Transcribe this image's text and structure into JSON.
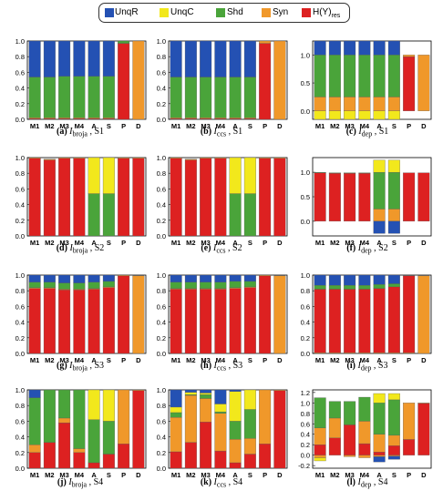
{
  "legend": [
    {
      "key": "UnqR",
      "label": "UnqR",
      "color": "#2451b3"
    },
    {
      "key": "UnqC",
      "label": "UnqC",
      "color": "#f2e81c"
    },
    {
      "key": "Shd",
      "label": "Shd",
      "color": "#4aa43a"
    },
    {
      "key": "Syn",
      "label": "Syn",
      "color": "#f0982a"
    },
    {
      "key": "H",
      "label": "H(Y)",
      "sub": "res",
      "color": "#dd2121"
    }
  ],
  "chart_data": [
    {
      "type": "bar",
      "stacked": true,
      "id": "a",
      "caption": {
        "letter": "(a)",
        "measure": "broja",
        "scenario": "S1"
      },
      "categories": [
        "M1",
        "M2",
        "M3",
        "M4",
        "A",
        "S",
        "P",
        "D"
      ],
      "ylim": [
        0,
        1
      ],
      "yticks": [
        0.0,
        0.2,
        0.4,
        0.6,
        0.8,
        1.0
      ],
      "series": [
        {
          "name": "H(Y)res",
          "values": [
            0.01,
            0.01,
            0.01,
            0.01,
            0.01,
            0.01,
            0.97,
            0
          ]
        },
        {
          "name": "Syn",
          "values": [
            0.01,
            0.01,
            0.01,
            0.01,
            0.01,
            0.01,
            0,
            1.0
          ]
        },
        {
          "name": "Shd",
          "values": [
            0.52,
            0.52,
            0.53,
            0.53,
            0.53,
            0.53,
            0.03,
            0
          ]
        },
        {
          "name": "UnqC",
          "values": [
            0,
            0,
            0,
            0,
            0,
            0,
            0,
            0
          ]
        },
        {
          "name": "UnqR",
          "values": [
            0.46,
            0.46,
            0.45,
            0.45,
            0.45,
            0.45,
            0,
            0
          ]
        }
      ]
    },
    {
      "type": "bar",
      "stacked": true,
      "id": "b",
      "caption": {
        "letter": "(b)",
        "measure": "ccs",
        "scenario": "S1"
      },
      "categories": [
        "M1",
        "M2",
        "M3",
        "M4",
        "A",
        "S",
        "P",
        "D"
      ],
      "ylim": [
        0,
        1
      ],
      "yticks": [
        0.0,
        0.2,
        0.4,
        0.6,
        0.8,
        1.0
      ],
      "series": [
        {
          "name": "H(Y)res",
          "values": [
            0.01,
            0.01,
            0.01,
            0.01,
            0.01,
            0.01,
            0.97,
            0
          ]
        },
        {
          "name": "Syn",
          "values": [
            0.01,
            0.01,
            0.01,
            0.01,
            0.01,
            0.01,
            0.03,
            1.0
          ]
        },
        {
          "name": "Shd",
          "values": [
            0.52,
            0.52,
            0.52,
            0.52,
            0.52,
            0.52,
            0,
            0
          ]
        },
        {
          "name": "UnqC",
          "values": [
            0,
            0,
            0,
            0,
            0,
            0,
            0,
            0
          ]
        },
        {
          "name": "UnqR",
          "values": [
            0.46,
            0.46,
            0.46,
            0.46,
            0.46,
            0.46,
            0,
            0
          ]
        }
      ]
    },
    {
      "type": "bar",
      "stacked": true,
      "id": "c",
      "caption": {
        "letter": "(c)",
        "measure": "dep",
        "scenario": "S1"
      },
      "categories": [
        "M1",
        "M2",
        "M3",
        "M4",
        "A",
        "S",
        "P",
        "D"
      ],
      "ylim": [
        -0.15,
        1.25
      ],
      "yticks": [
        0.0,
        0.5,
        1.0
      ],
      "negative": [
        {
          "name": "UnqC",
          "values": [
            -0.15,
            -0.15,
            -0.15,
            -0.15,
            -0.15,
            -0.15,
            0,
            0
          ]
        }
      ],
      "series": [
        {
          "name": "Syn",
          "values": [
            0.25,
            0.25,
            0.25,
            0.25,
            0.25,
            0.25,
            0,
            1.0
          ]
        },
        {
          "name": "Shd",
          "values": [
            0.75,
            0.75,
            0.75,
            0.75,
            0.75,
            0.75,
            0,
            0
          ]
        },
        {
          "name": "H(Y)res",
          "values": [
            0,
            0,
            0,
            0,
            0,
            0,
            0.97,
            0
          ]
        },
        {
          "name": "Syn",
          "values": [
            0,
            0,
            0,
            0,
            0,
            0,
            0.03,
            0
          ]
        },
        {
          "name": "UnqR",
          "values": [
            0.25,
            0.25,
            0.25,
            0.25,
            0.25,
            0.25,
            0,
            0
          ]
        }
      ]
    },
    {
      "type": "bar",
      "stacked": true,
      "id": "d",
      "caption": {
        "letter": "(d)",
        "measure": "broja",
        "scenario": "S2"
      },
      "categories": [
        "M1",
        "M2",
        "M3",
        "M4",
        "A",
        "S",
        "P",
        "D"
      ],
      "ylim": [
        0,
        1
      ],
      "yticks": [
        0.0,
        0.2,
        0.4,
        0.6,
        0.8,
        1.0
      ],
      "series": [
        {
          "name": "H(Y)res",
          "values": [
            0.99,
            0.97,
            0.99,
            0.99,
            0,
            0,
            0.99,
            0.99
          ]
        },
        {
          "name": "Shd",
          "values": [
            0,
            0,
            0,
            0,
            0.54,
            0.54,
            0,
            0
          ]
        },
        {
          "name": "UnqC",
          "values": [
            0,
            0,
            0,
            0,
            0.46,
            0.46,
            0,
            0
          ]
        },
        {
          "name": "Syn",
          "values": [
            0.01,
            0.01,
            0.01,
            0.01,
            0,
            0,
            0.01,
            0.01
          ]
        }
      ]
    },
    {
      "type": "bar",
      "stacked": true,
      "id": "e",
      "caption": {
        "letter": "(e)",
        "measure": "ccs",
        "scenario": "S2"
      },
      "categories": [
        "M1",
        "M2",
        "M3",
        "M4",
        "A",
        "S",
        "P",
        "D"
      ],
      "ylim": [
        0,
        1
      ],
      "yticks": [
        0.0,
        0.2,
        0.4,
        0.6,
        0.8,
        1.0
      ],
      "series": [
        {
          "name": "H(Y)res",
          "values": [
            0.99,
            0.97,
            0.99,
            0.99,
            0,
            0,
            0.99,
            0.99
          ]
        },
        {
          "name": "Shd",
          "values": [
            0,
            0,
            0,
            0,
            0.54,
            0.54,
            0,
            0
          ]
        },
        {
          "name": "UnqC",
          "values": [
            0,
            0,
            0,
            0,
            0.46,
            0.46,
            0,
            0
          ]
        },
        {
          "name": "Syn",
          "values": [
            0.01,
            0.01,
            0.01,
            0.01,
            0,
            0,
            0.01,
            0.01
          ]
        }
      ]
    },
    {
      "type": "bar",
      "stacked": true,
      "id": "f",
      "caption": {
        "letter": "(f)",
        "measure": "dep",
        "scenario": "S2"
      },
      "categories": [
        "M1",
        "M2",
        "M3",
        "M4",
        "A",
        "S",
        "P",
        "D"
      ],
      "ylim": [
        -0.3,
        1.3
      ],
      "yticks": [
        0.0,
        0.5,
        1.0
      ],
      "negative": [
        {
          "name": "UnqR",
          "values": [
            0,
            0,
            0,
            0,
            -0.25,
            -0.25,
            0,
            0
          ]
        }
      ],
      "series": [
        {
          "name": "H(Y)res",
          "values": [
            0.99,
            0.98,
            0.98,
            0.98,
            0,
            0,
            0.99,
            0.99
          ]
        },
        {
          "name": "Syn",
          "values": [
            0,
            0,
            0,
            0,
            0.25,
            0.25,
            0,
            0
          ]
        },
        {
          "name": "Shd",
          "values": [
            0.01,
            0.01,
            0.01,
            0.01,
            0.75,
            0.75,
            0,
            0
          ]
        },
        {
          "name": "UnqC",
          "values": [
            0,
            0,
            0,
            0,
            0.25,
            0.25,
            0,
            0
          ]
        }
      ]
    },
    {
      "type": "bar",
      "stacked": true,
      "id": "g",
      "caption": {
        "letter": "(g)",
        "measure": "broja",
        "scenario": "S3"
      },
      "categories": [
        "M1",
        "M2",
        "M3",
        "M4",
        "A",
        "S",
        "P",
        "D"
      ],
      "ylim": [
        0,
        1
      ],
      "yticks": [
        0.0,
        0.2,
        0.4,
        0.6,
        0.8,
        1.0
      ],
      "series": [
        {
          "name": "H(Y)res",
          "values": [
            0.83,
            0.83,
            0.81,
            0.81,
            0.82,
            0.84,
            0.99,
            0
          ]
        },
        {
          "name": "Syn",
          "values": [
            0.01,
            0.01,
            0.01,
            0.01,
            0.01,
            0.01,
            0.01,
            0.99
          ]
        },
        {
          "name": "Shd",
          "values": [
            0.07,
            0.07,
            0.08,
            0.08,
            0.08,
            0.07,
            0,
            0
          ]
        },
        {
          "name": "UnqR",
          "values": [
            0.09,
            0.09,
            0.1,
            0.1,
            0.09,
            0.08,
            0,
            0
          ]
        }
      ]
    },
    {
      "type": "bar",
      "stacked": true,
      "id": "h",
      "caption": {
        "letter": "(h)",
        "measure": "ccs",
        "scenario": "S3"
      },
      "categories": [
        "M1",
        "M2",
        "M3",
        "M4",
        "A",
        "S",
        "P",
        "D"
      ],
      "ylim": [
        0,
        1
      ],
      "yticks": [
        0.0,
        0.2,
        0.4,
        0.6,
        0.8,
        1.0
      ],
      "series": [
        {
          "name": "H(Y)res",
          "values": [
            0.82,
            0.82,
            0.82,
            0.82,
            0.83,
            0.84,
            0.99,
            0
          ]
        },
        {
          "name": "Syn",
          "values": [
            0.01,
            0.01,
            0.01,
            0.01,
            0.01,
            0.01,
            0.01,
            0.99
          ]
        },
        {
          "name": "Shd",
          "values": [
            0.08,
            0.08,
            0.08,
            0.08,
            0.08,
            0.07,
            0,
            0
          ]
        },
        {
          "name": "UnqR",
          "values": [
            0.09,
            0.09,
            0.09,
            0.09,
            0.08,
            0.08,
            0,
            0
          ]
        }
      ]
    },
    {
      "type": "bar",
      "stacked": true,
      "id": "i",
      "caption": {
        "letter": "(i)",
        "measure": "dep",
        "scenario": "S3"
      },
      "categories": [
        "M1",
        "M2",
        "M3",
        "M4",
        "A",
        "S",
        "P",
        "D"
      ],
      "ylim": [
        0,
        1
      ],
      "yticks": [
        0.0,
        0.2,
        0.4,
        0.6,
        0.8,
        1.0
      ],
      "series": [
        {
          "name": "Syn",
          "values": [
            0.01,
            0.01,
            0.01,
            0.01,
            0.01,
            0.01,
            0.01,
            0.99
          ]
        },
        {
          "name": "H(Y)res",
          "values": [
            0.81,
            0.81,
            0.81,
            0.81,
            0.82,
            0.84,
            0.98,
            0
          ]
        },
        {
          "name": "Shd",
          "values": [
            0.05,
            0.05,
            0.05,
            0.05,
            0.05,
            0.04,
            0,
            0
          ]
        },
        {
          "name": "UnqR",
          "values": [
            0.13,
            0.13,
            0.13,
            0.13,
            0.12,
            0.11,
            0,
            0
          ]
        }
      ]
    },
    {
      "type": "bar",
      "stacked": true,
      "id": "j",
      "caption": {
        "letter": "(j)",
        "measure": "broja",
        "scenario": "S4"
      },
      "categories": [
        "M1",
        "M2",
        "M3",
        "M4",
        "A",
        "S",
        "P",
        "D"
      ],
      "ylim": [
        0,
        1
      ],
      "yticks": [
        0.0,
        0.2,
        0.4,
        0.6,
        0.8,
        1.0
      ],
      "series": [
        {
          "name": "H(Y)res",
          "values": [
            0.2,
            0.33,
            0.58,
            0.2,
            0.07,
            0.18,
            0.31,
            0.99
          ]
        },
        {
          "name": "Syn",
          "values": [
            0.1,
            0,
            0.06,
            0.05,
            0,
            0,
            0.69,
            0.01
          ]
        },
        {
          "name": "Shd",
          "values": [
            0.6,
            0.67,
            0.36,
            0.75,
            0.55,
            0.42,
            0,
            0
          ]
        },
        {
          "name": "UnqC",
          "values": [
            0,
            0,
            0,
            0,
            0.38,
            0.4,
            0,
            0
          ]
        },
        {
          "name": "UnqR",
          "values": [
            0.1,
            0,
            0,
            0,
            0,
            0,
            0,
            0
          ]
        }
      ]
    },
    {
      "type": "bar",
      "stacked": true,
      "id": "k",
      "caption": {
        "letter": "(k)",
        "measure": "ccs",
        "scenario": "S4"
      },
      "categories": [
        "M1",
        "M2",
        "M3",
        "M4",
        "A",
        "S",
        "P",
        "D"
      ],
      "ylim": [
        0,
        1
      ],
      "yticks": [
        0.0,
        0.2,
        0.4,
        0.6,
        0.8,
        1.0
      ],
      "series": [
        {
          "name": "H(Y)res",
          "values": [
            0.21,
            0.33,
            0.59,
            0.22,
            0.07,
            0.18,
            0.31,
            0.99
          ]
        },
        {
          "name": "Syn",
          "values": [
            0.44,
            0.6,
            0.3,
            0.48,
            0.3,
            0.2,
            0.69,
            0.01
          ]
        },
        {
          "name": "Shd",
          "values": [
            0.06,
            0.01,
            0.05,
            0.02,
            0.23,
            0.37,
            0,
            0
          ]
        },
        {
          "name": "UnqC",
          "values": [
            0.07,
            0.03,
            0.02,
            0.1,
            0.38,
            0.25,
            0,
            0
          ]
        },
        {
          "name": "UnqR",
          "values": [
            0.22,
            0.03,
            0.04,
            0.18,
            0.02,
            0,
            0,
            0
          ]
        }
      ]
    },
    {
      "type": "bar",
      "stacked": true,
      "id": "l",
      "caption": {
        "letter": "(l)",
        "measure": "dep",
        "scenario": "S4"
      },
      "categories": [
        "M1",
        "M2",
        "M3",
        "M4",
        "A",
        "S",
        "P",
        "D"
      ],
      "ylim": [
        -0.25,
        1.25
      ],
      "yticks": [
        -0.2,
        0.0,
        0.2,
        0.4,
        0.6,
        0.8,
        1.0,
        1.2
      ],
      "negative": [
        {
          "name": "Syn",
          "values": [
            -0.05,
            0,
            -0.03,
            -0.05,
            -0.03,
            -0.02,
            0,
            0
          ]
        },
        {
          "name": "UnqR",
          "values": [
            0,
            0,
            0,
            0,
            -0.1,
            -0.06,
            0,
            0
          ]
        },
        {
          "name": "UnqC",
          "values": [
            -0.06,
            0,
            0,
            0,
            0,
            0,
            0,
            0
          ]
        }
      ],
      "series": [
        {
          "name": "H(Y)res",
          "values": [
            0.2,
            0.33,
            0.58,
            0.22,
            0.06,
            0.18,
            0.3,
            0.99
          ]
        },
        {
          "name": "Syn",
          "values": [
            0.32,
            0.38,
            0,
            0.43,
            0.34,
            0.2,
            0.7,
            0.01
          ]
        },
        {
          "name": "Shd",
          "values": [
            0.58,
            0.32,
            0.45,
            0.46,
            0.6,
            0.68,
            0,
            0
          ]
        },
        {
          "name": "UnqC",
          "values": [
            0,
            0,
            0,
            0,
            0.18,
            0.12,
            0,
            0
          ]
        }
      ]
    }
  ]
}
